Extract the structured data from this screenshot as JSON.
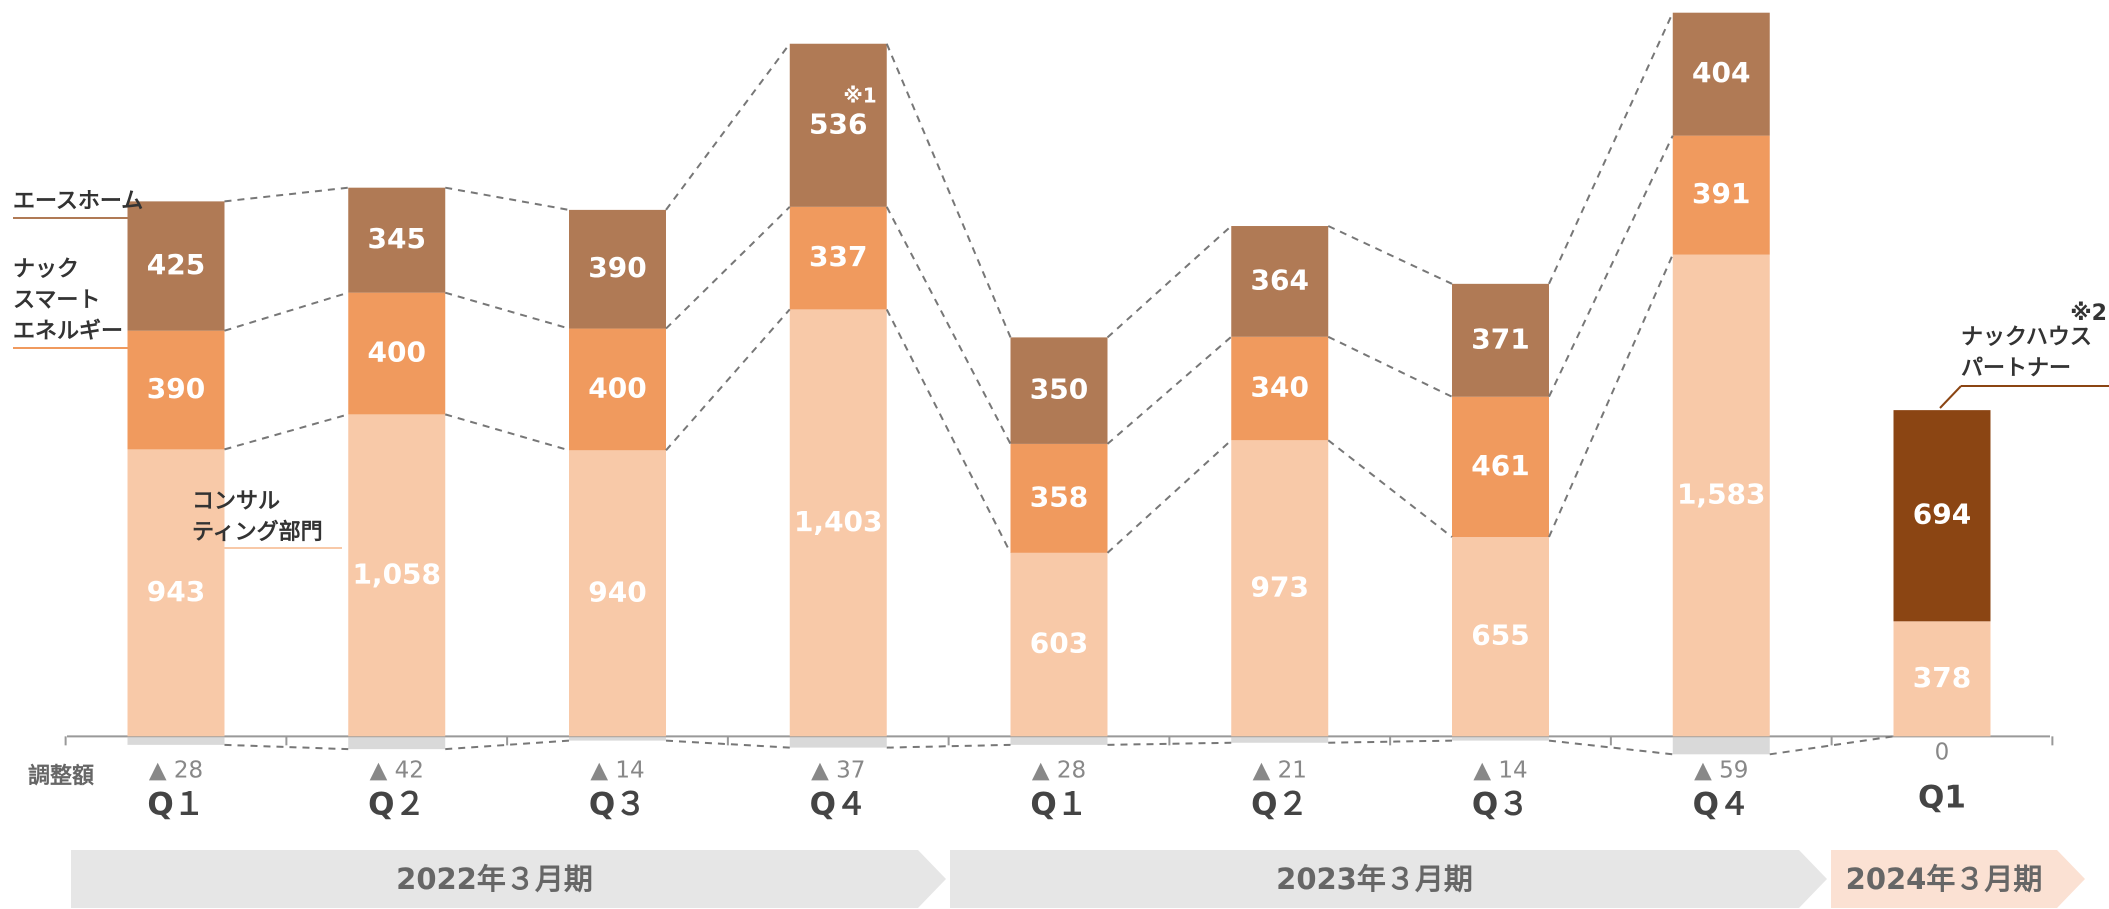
{
  "chart_data": {
    "type": "stacked-bar",
    "categories": [
      "Q１",
      "Q２",
      "Q３",
      "Q４",
      "Q１",
      "Q２",
      "Q３",
      "Q４",
      "Q1"
    ],
    "series": [
      {
        "name": "コンサル\nティング部門",
        "color": "#f8c9a8",
        "values": [
          943,
          1058,
          940,
          1403,
          603,
          973,
          655,
          1583,
          378
        ],
        "value_labels": [
          "943",
          "1,058",
          "940",
          "1,403",
          "603",
          "973",
          "655",
          "1,583",
          "378"
        ]
      },
      {
        "name": "ナック\nスマート\nエネルギー",
        "color": "#f09a5e",
        "values": [
          390,
          400,
          400,
          337,
          358,
          340,
          461,
          391,
          null
        ]
      },
      {
        "name": "エースホーム",
        "color": "#b07a55",
        "values": [
          425,
          345,
          390,
          536,
          350,
          364,
          371,
          404,
          null
        ]
      },
      {
        "name": "ナックハウス\nパートナー",
        "color": "#8b4513",
        "values": [
          null,
          null,
          null,
          null,
          null,
          null,
          null,
          null,
          694
        ]
      }
    ],
    "adjustment": {
      "name": "調整額",
      "color": "#d9d9d9",
      "values": [
        -28,
        -42,
        -14,
        -37,
        -28,
        -21,
        -14,
        -59,
        0
      ],
      "value_labels": [
        "▲ 28",
        "▲ 42",
        "▲ 14",
        "▲ 37",
        "▲ 28",
        "▲ 21",
        "▲ 14",
        "▲ 59",
        "0"
      ]
    },
    "periods": [
      "2022年３月期",
      "2023年３月期",
      "2024年３月期"
    ],
    "annotations": [
      "※1",
      "※2"
    ],
    "ylim": [
      -150,
      2400
    ]
  }
}
